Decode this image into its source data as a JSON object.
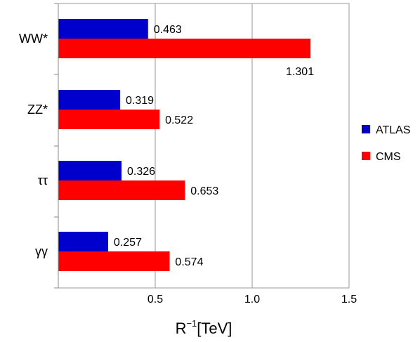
{
  "chart_data": {
    "type": "bar",
    "orientation": "horizontal",
    "categories": [
      "WW*",
      "ZZ*",
      "ττ",
      "γγ"
    ],
    "series": [
      {
        "name": "ATLAS",
        "color": "#0000cc",
        "values": [
          0.463,
          0.319,
          0.326,
          0.257
        ]
      },
      {
        "name": "CMS",
        "color": "#ff0000",
        "values": [
          1.301,
          0.522,
          0.653,
          0.574
        ]
      }
    ],
    "value_labels": {
      "ATLAS": [
        "0.463",
        "0.319",
        "0.326",
        "0.257"
      ],
      "CMS": [
        "1.301",
        "0.522",
        "0.653",
        "0.574"
      ]
    },
    "xlim": [
      0,
      1.5
    ],
    "xticks": [
      0.5,
      1.0,
      1.5
    ],
    "xtick_labels": [
      "0.5",
      "1.0",
      "1.5"
    ],
    "xlabel_base": "R",
    "xlabel_sup": "−1",
    "xlabel_unit": "[TeV]",
    "grid": "vertical",
    "legend_position": "right"
  }
}
